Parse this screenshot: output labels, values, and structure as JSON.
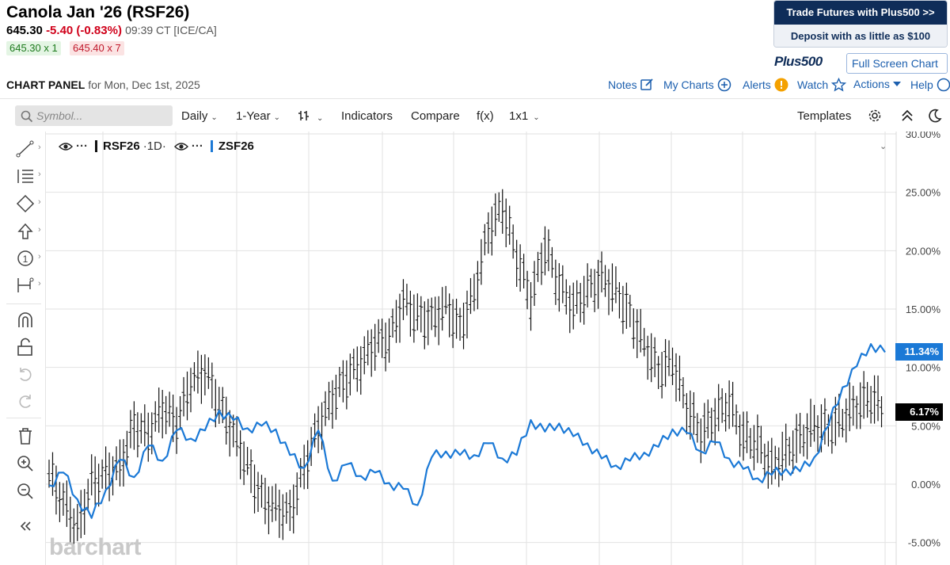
{
  "header": {
    "title": "Canola Jan '26 (RSF26)",
    "last": "645.30",
    "change": "-5.40 (-0.83%)",
    "time": "09:39 CT [ICE/CA]",
    "bid": "645.30 x 1",
    "ask": "645.40 x 7"
  },
  "ad": {
    "line1": "Trade Futures with Plus500 >>",
    "line2": "Deposit with as little as $100",
    "logo": "Plus500",
    "fullscreen": "Full Screen Chart"
  },
  "panel": {
    "label": "CHART PANEL",
    "date_text": "for Mon, Dec 1st, 2025",
    "links": [
      "Notes",
      "My Charts",
      "Alerts",
      "Watch",
      "Actions",
      "Help"
    ]
  },
  "toolbar": {
    "symbol_placeholder": "Symbol...",
    "interval": "Daily",
    "range": "1-Year",
    "indicators": "Indicators",
    "compare": "Compare",
    "fx": "f(x)",
    "layout": "1x1",
    "templates": "Templates"
  },
  "tools": [
    "draw-line-icon",
    "fib-icon",
    "shape-icon",
    "arrow-up-icon",
    "annotation-icon",
    "measure-icon",
    "magnet-icon",
    "unlock-icon",
    "undo-icon",
    "redo-icon",
    "trash-icon",
    "zoom-in-icon",
    "zoom-out-icon",
    "collapse-icon"
  ],
  "legend": {
    "series1": "RSF26",
    "series1_tf": "1D",
    "series2": "ZSF26",
    "dots": "···"
  },
  "watermark": "barchart",
  "chart_data": {
    "type": "line",
    "y_axis_position": "right",
    "y_ticks": [
      "30.00%",
      "25.00%",
      "20.00%",
      "15.00%",
      "10.00%",
      "5.00%",
      "0.00%",
      "-5.00%"
    ],
    "ylim": [
      -5.5,
      30
    ],
    "grid": true,
    "last_values": [
      "11.34%",
      "6.17%"
    ],
    "series": [
      {
        "name": "RSF26",
        "style": "ohlc",
        "color": "#111111",
        "badge": "6.17%",
        "values": [
          0.9,
          -1.6,
          -3.8,
          0.2,
          0.8,
          1.5,
          5.0,
          4.3,
          6.5,
          5.2,
          8.6,
          9.7,
          6.8,
          4.3,
          1.5,
          -1.2,
          -2.1,
          -2.6,
          1.4,
          4.9,
          7.3,
          9.1,
          10.3,
          12.1,
          12.4,
          15.6,
          14.3,
          14.0,
          15.2,
          13.3,
          16.3,
          21.7,
          23.8,
          19.5,
          15.8,
          20.4,
          17.0,
          15.1,
          16.6,
          17.6,
          16.5,
          14.4,
          12.0,
          9.7,
          10.5,
          6.6,
          4.3,
          5.8,
          7.0,
          4.0,
          3.5,
          1.4,
          2.7,
          3.9,
          5.0,
          4.7,
          5.6,
          6.7,
          7.4,
          6.2
        ]
      },
      {
        "name": "ZSF26",
        "style": "line",
        "color": "#1b79d6",
        "badge": "11.34%",
        "values": [
          -0.1,
          1.0,
          -1.3,
          -2.9,
          -0.5,
          2.1,
          0.6,
          3.3,
          2.0,
          4.6,
          3.9,
          4.6,
          6.3,
          5.5,
          4.8,
          5.0,
          4.7,
          2.5,
          1.4,
          4.6,
          0.3,
          1.7,
          0.7,
          1.0,
          0.1,
          -0.4,
          -1.8,
          2.3,
          2.8,
          2.5,
          2.5,
          3.5,
          2.2,
          2.5,
          5.5,
          4.5,
          5.2,
          4.1,
          3.5,
          2.2,
          1.6,
          2.0,
          2.7,
          3.2,
          4.7,
          4.4,
          2.8,
          3.6,
          2.2,
          1.3,
          0.5,
          0.8,
          1.3,
          1.1,
          2.3,
          5.0,
          8.3,
          10.1,
          12.0,
          11.3
        ]
      }
    ]
  },
  "colors": {
    "accent": "#1c5fae",
    "down": "#d0021b",
    "series2": "#1b79d6",
    "ad_navy": "#0f2d59"
  }
}
